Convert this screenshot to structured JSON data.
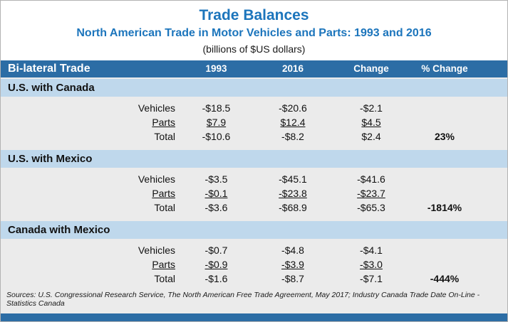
{
  "chart_data": {
    "type": "table",
    "title": "Trade Balances",
    "subtitle": "North American Trade in Motor Vehicles and Parts: 1993 and 2016",
    "units_note": "(billions of $US dollars)",
    "columns": [
      "Bi-lateral Trade",
      "1993",
      "2016",
      "Change",
      "% Change"
    ],
    "sections": [
      {
        "name": "U.S. with Canada",
        "rows": [
          {
            "label": "Vehicles",
            "y1993": "-$18.5",
            "y2016": "-$20.6",
            "change": "-$2.1",
            "pct": ""
          },
          {
            "label": "Parts",
            "y1993": "$7.9",
            "y2016": "$12.4",
            "change": "$4.5",
            "pct": ""
          },
          {
            "label": "Total",
            "y1993": "-$10.6",
            "y2016": "-$8.2",
            "change": "$2.4",
            "pct": "23%"
          }
        ]
      },
      {
        "name": "U.S. with Mexico",
        "rows": [
          {
            "label": "Vehicles",
            "y1993": "-$3.5",
            "y2016": "-$45.1",
            "change": "-$41.6",
            "pct": ""
          },
          {
            "label": "Parts",
            "y1993": "-$0.1",
            "y2016": "-$23.8",
            "change": "-$23.7",
            "pct": ""
          },
          {
            "label": "Total",
            "y1993": "-$3.6",
            "y2016": "-$68.9",
            "change": "-$65.3",
            "pct": "-1814%"
          }
        ]
      },
      {
        "name": "Canada with Mexico",
        "rows": [
          {
            "label": "Vehicles",
            "y1993": "-$0.7",
            "y2016": "-$4.8",
            "change": "-$4.1",
            "pct": ""
          },
          {
            "label": "Parts",
            "y1993": "-$0.9",
            "y2016": "-$3.9",
            "change": "-$3.0",
            "pct": ""
          },
          {
            "label": "Total",
            "y1993": "-$1.6",
            "y2016": "-$8.7",
            "change": "-$7.1",
            "pct": "-444%"
          }
        ]
      }
    ],
    "sources": "Sources: U.S. Congressional Research Service, The North American Free Trade Agreement, May 2017; Industry Canada Trade Date On-Line - Statistics Canada",
    "colors": {
      "title_blue": "#1C75BC",
      "header_bar": "#2C6DA5",
      "section_band": "#BFD8EC",
      "body_bg": "#EBEBEB"
    }
  }
}
